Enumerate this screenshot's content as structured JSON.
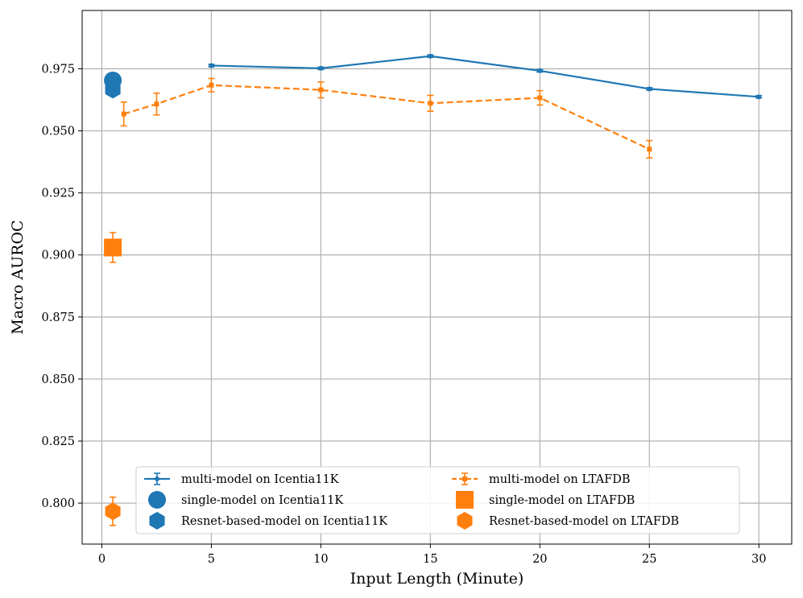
{
  "chart_data": {
    "type": "line",
    "xlabel": "Input Length (Minute)",
    "ylabel": "Macro AUROC",
    "xlim": [
      -0.9,
      31.5
    ],
    "ylim": [
      0.7835,
      0.9985
    ],
    "x_ticks": [
      0,
      5,
      10,
      15,
      20,
      25,
      30
    ],
    "y_ticks": [
      0.8,
      0.825,
      0.85,
      0.875,
      0.9,
      0.925,
      0.95,
      0.975
    ],
    "grid": true,
    "legend_position": "bottom-center",
    "series": [
      {
        "name": "multi-model on Icentia11K",
        "color": "#1f77b4",
        "style": "solid",
        "marker": "dot",
        "x": [
          5,
          10,
          15,
          20,
          25,
          30
        ],
        "y": [
          0.9763,
          0.9752,
          0.9801,
          0.9742,
          0.9669,
          0.9637
        ],
        "err": [
          0.0005,
          0.0005,
          0.0005,
          0.0005,
          0.0005,
          0.0005
        ]
      },
      {
        "name": "single-model on Icentia11K",
        "color": "#1f77b4",
        "marker": "circle",
        "x": [
          0.5
        ],
        "y": [
          0.9703
        ]
      },
      {
        "name": "Resnet-based-model on Icentia11K",
        "color": "#1f77b4",
        "marker": "hexagon",
        "x": [
          0.5
        ],
        "y": [
          0.9666
        ]
      },
      {
        "name": "multi-model on LTAFDB",
        "color": "#ff7f0e",
        "style": "dashed",
        "marker": "square-small",
        "x": [
          1,
          2.5,
          5,
          10,
          15,
          20,
          25
        ],
        "y": [
          0.9568,
          0.9608,
          0.9684,
          0.9665,
          0.9611,
          0.9633,
          0.9426
        ],
        "err": [
          0.0048,
          0.0044,
          0.0027,
          0.0032,
          0.0032,
          0.0029,
          0.0035
        ]
      },
      {
        "name": "single-model on LTAFDB",
        "color": "#ff7f0e",
        "marker": "square",
        "x": [
          0.5
        ],
        "y": [
          0.903
        ],
        "err": [
          0.006
        ]
      },
      {
        "name": "Resnet-based-model on LTAFDB",
        "color": "#ff7f0e",
        "marker": "hexagon",
        "x": [
          0.5
        ],
        "y": [
          0.7967
        ],
        "err": [
          0.0057
        ]
      }
    ]
  }
}
